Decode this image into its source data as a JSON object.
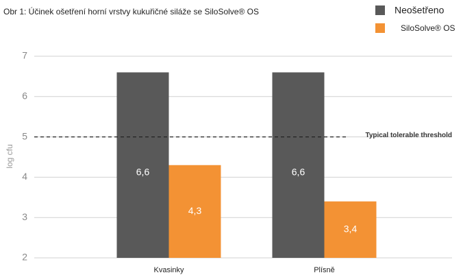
{
  "chart_data": {
    "type": "bar",
    "title": "Obr 1: Účinek ošetření horní vrstvy kukuřičné siláže se  SiloSolve® OS",
    "y_label": "log cfu",
    "categories": [
      "Kvasinky",
      "Plísně"
    ],
    "series": [
      {
        "name": "Neošetřeno",
        "color": "#595959",
        "values": [
          6.6,
          6.6
        ],
        "value_labels": [
          "6,6",
          "6,6"
        ]
      },
      {
        "name": "SiloSolve® OS",
        "color": "#f39234",
        "values": [
          4.3,
          3.4
        ],
        "value_labels": [
          "4,3",
          "3,4"
        ]
      }
    ],
    "ylim": [
      2,
      7
    ],
    "yticks": [
      2,
      3,
      4,
      5,
      6,
      7
    ],
    "grid": true,
    "threshold": {
      "value": 5,
      "label": "Typical tolerable threshold"
    },
    "legend": "top-right"
  }
}
